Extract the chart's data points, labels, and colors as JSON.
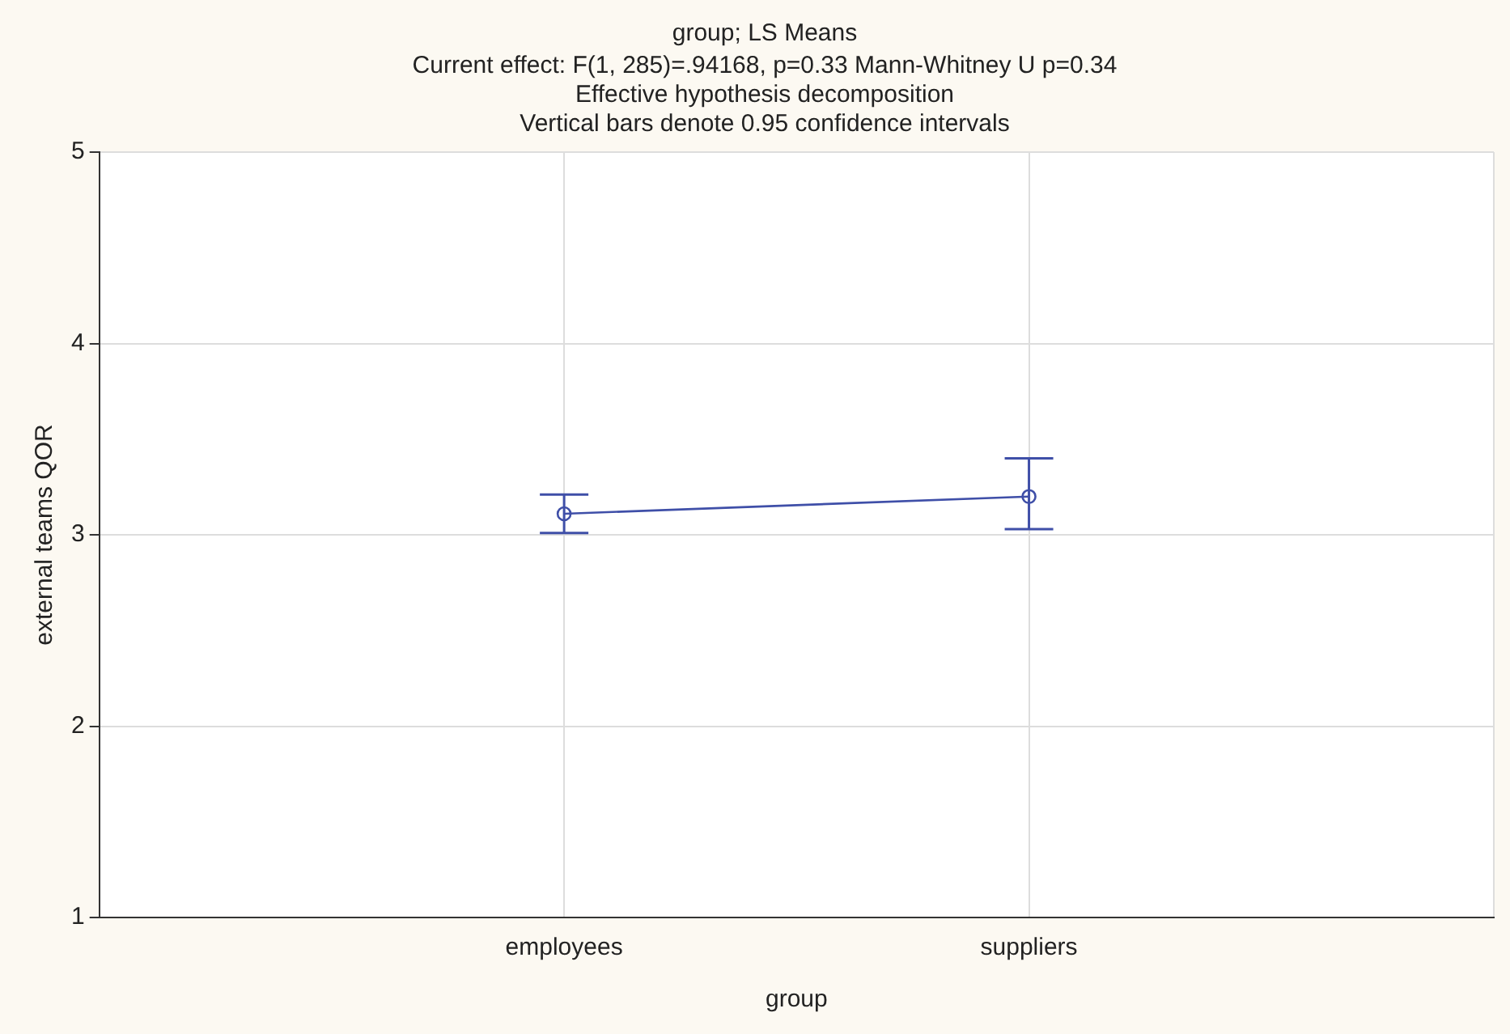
{
  "chart_data": {
    "type": "line",
    "title": "group; LS Means",
    "subtitle": [
      "Current effect: F(1, 285)=.94168, p=0.33 Mann-Whitney U p=0.34",
      "Effective hypothesis decomposition",
      "Vertical bars denote 0.95 confidence intervals"
    ],
    "xlabel": "group",
    "ylabel": "external teams QOR",
    "categories": [
      "employees",
      "suppliers"
    ],
    "series": [
      {
        "color": "#3f4fa8",
        "values": [
          3.11,
          3.2
        ],
        "errors": [
          [
            3.01,
            3.21
          ],
          [
            3.03,
            3.4
          ]
        ]
      }
    ],
    "ylim": [
      1,
      5
    ],
    "yticks": [
      1,
      2,
      3,
      4,
      5
    ],
    "grid": true,
    "legend": false,
    "marker": "circle",
    "line_style": "solid"
  }
}
